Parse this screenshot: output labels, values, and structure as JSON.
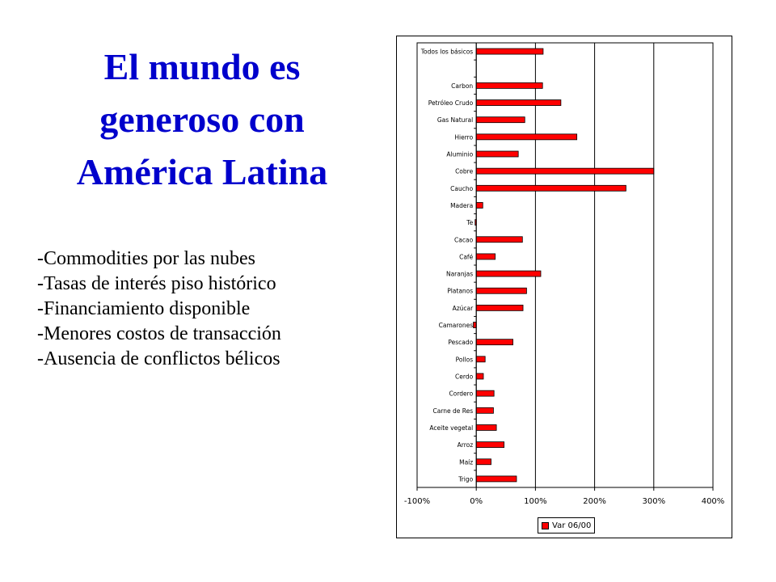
{
  "slide": {
    "title_lines": [
      "El mundo es",
      "generoso con",
      "América Latina"
    ],
    "bullets": [
      "-Commodities por las nubes",
      "-Tasas de interés piso histórico",
      "-Financiamiento disponible",
      "-Menores costos de transacción",
      "-Ausencia de conflictos bélicos"
    ]
  },
  "colors": {
    "title": "#0000cc",
    "bar": "#ff0000",
    "bar_border": "#000000"
  },
  "chart_data": {
    "type": "bar",
    "orientation": "horizontal",
    "categories": [
      "Todos los básicos",
      "",
      "Carbon",
      "Petróleo Crudo",
      "Gas Natural",
      "Hierro",
      "Aluminio",
      "Cobre",
      "Caucho",
      "Madera",
      "Te",
      "Cacao",
      "Café",
      "Naranjas",
      "Platanos",
      "Azúcar",
      "Camarones",
      "Pescado",
      "Pollos",
      "Cerdo",
      "Cordero",
      "Carne de Res",
      "Aceite vegetal",
      "Arroz",
      "Maíz",
      "Trigo"
    ],
    "series": [
      {
        "name": "Var 06/00",
        "values": [
          113,
          null,
          112,
          143,
          82,
          170,
          71,
          300,
          253,
          11,
          -2,
          78,
          32,
          109,
          85,
          79,
          -5,
          62,
          15,
          12,
          30,
          29,
          34,
          47,
          25,
          68
        ]
      }
    ],
    "xlim": [
      -100,
      400
    ],
    "x_ticks": [
      -100,
      0,
      100,
      200,
      300,
      400
    ],
    "x_tick_labels": [
      "-100%",
      "0%",
      "100%",
      "200%",
      "300%",
      "400%"
    ],
    "grid": "vertical major",
    "legend_position": "bottom"
  }
}
